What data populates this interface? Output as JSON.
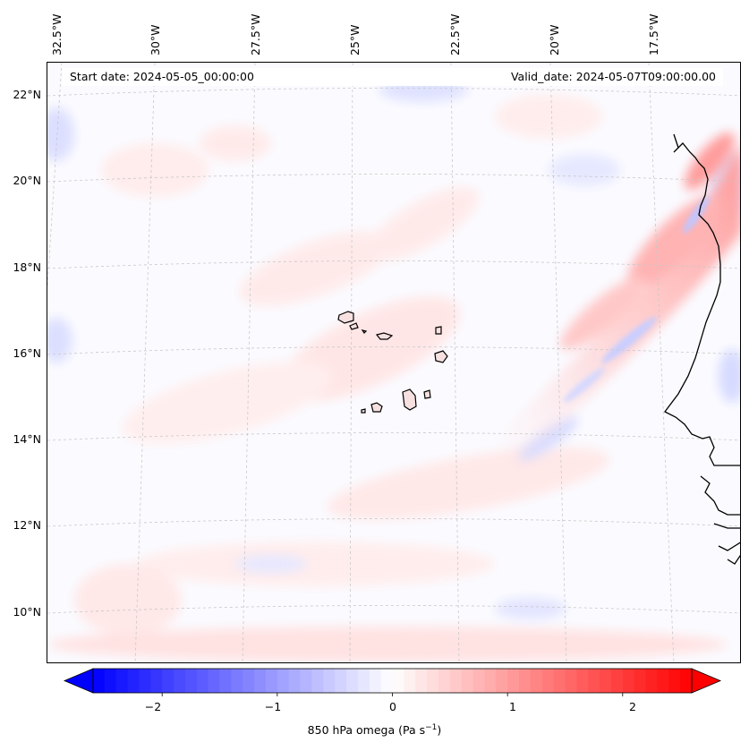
{
  "header": {
    "start_date": "Start date: 2024-05-05_00:00:00",
    "valid_date": "Valid_date: 2024-05-07T09:00:00.00"
  },
  "map": {
    "longitude_labels": [
      "32.5°W",
      "30°W",
      "27.5°W",
      "25°W",
      "22.5°W",
      "20°W",
      "17.5°W"
    ],
    "latitude_labels": [
      "22°N",
      "20°N",
      "18°N",
      "16°N",
      "14°N",
      "12°N",
      "10°N"
    ]
  },
  "colorbar": {
    "variable": "850 hPa omega",
    "unit_base": "(Pa s",
    "unit_exp": "−1",
    "unit_close": ")",
    "ticks": [
      "−2",
      "−1",
      "0",
      "1",
      "2"
    ],
    "vmin": -2.6,
    "vmax": 2.6,
    "tick_values": [
      -2,
      -1,
      0,
      1,
      2
    ],
    "low_color": "#0000ff",
    "mid_color": "#ffffff",
    "high_color": "#ff0000"
  }
}
